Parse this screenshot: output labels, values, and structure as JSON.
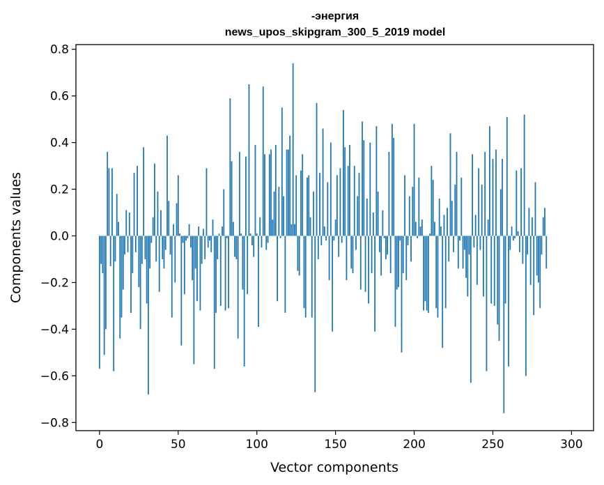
{
  "chart_data": {
    "type": "bar",
    "title_line1": "-энергия",
    "title_line2": "news_upos_skipgram_300_5_2019 model",
    "xlabel": "Vector components",
    "ylabel": "Components values",
    "xlim": [
      -15,
      314
    ],
    "ylim": [
      -0.835,
      0.82
    ],
    "xticks": [
      0,
      50,
      100,
      150,
      200,
      250,
      300
    ],
    "xtick_labels": [
      "0",
      "50",
      "100",
      "150",
      "200",
      "250",
      "300"
    ],
    "yticks": [
      -0.8,
      -0.6,
      -0.4,
      -0.2,
      0.0,
      0.2,
      0.4,
      0.6,
      0.8
    ],
    "ytick_labels": [
      "−0.8",
      "−0.6",
      "−0.4",
      "−0.2",
      "0.0",
      "0.2",
      "0.4",
      "0.6",
      "0.8"
    ],
    "bar_color": "#1f77b4",
    "values": [
      -0.57,
      -0.12,
      -0.16,
      -0.51,
      -0.4,
      0.36,
      0.29,
      -0.13,
      0.29,
      -0.58,
      -0.11,
      0.18,
      0.06,
      -0.44,
      -0.35,
      -0.23,
      -0.08,
      0.11,
      -0.07,
      0.1,
      -0.33,
      -0.16,
      0.27,
      -0.07,
      0.3,
      -0.22,
      -0.4,
      -0.12,
      0.38,
      -0.1,
      -0.29,
      -0.68,
      -0.14,
      -0.03,
      0.08,
      0.31,
      -0.11,
      0.19,
      -0.24,
      0.11,
      -0.1,
      -0.14,
      -0.06,
      0.43,
      0.15,
      -0.08,
      -0.35,
      0.05,
      -0.2,
      0.14,
      0.26,
      0.01,
      -0.47,
      -0.03,
      -0.25,
      -0.02,
      -0.01,
      0.05,
      -0.05,
      -0.19,
      -0.55,
      -0.14,
      -0.28,
      0.04,
      -0.32,
      -0.12,
      0.03,
      -0.1,
      0.29,
      -0.05,
      -0.02,
      -0.07,
      0.07,
      -0.57,
      -0.33,
      -0.1,
      0.01,
      -0.3,
      0.04,
      0.2,
      -0.32,
      -0.01,
      -0.31,
      0.59,
      0.32,
      0.06,
      -0.09,
      -0.1,
      -0.44,
      0.36,
      0.01,
      -0.23,
      -0.56,
      0.34,
      -0.25,
      0.65,
      0.01,
      -0.04,
      -0.09,
      0.39,
      0.01,
      -0.39,
      0.08,
      -0.05,
      0.64,
      0.35,
      -0.06,
      -0.03,
      0.35,
      0.37,
      0.07,
      0.19,
      0.39,
      -0.28,
      0.21,
      -0.01,
      0.55,
      0.17,
      -0.33,
      0.37,
      0.37,
      0.43,
      0.05,
      0.74,
      0.05,
      0.26,
      -0.15,
      -0.17,
      0.28,
      0.35,
      -0.31,
      -0.35,
      0.25,
      0.26,
      0.08,
      -0.35,
      0.19,
      -0.67,
      0.57,
      -0.1,
      0.27,
      -0.04,
      0.46,
      0.04,
      -0.02,
      0.23,
      -0.19,
      0.4,
      -0.41,
      -0.02,
      0.07,
      0.26,
      -0.09,
      0.29,
      -0.03,
      0.54,
      0.38,
      -0.19,
      0.3,
      0.39,
      -0.14,
      -0.16,
      0.3,
      -0.06,
      0.17,
      0.27,
      -0.23,
      0.49,
      0.41,
      -0.24,
      0.16,
      -0.29,
      0.4,
      -0.16,
      0.1,
      -0.41,
      0.47,
      0.19,
      -0.07,
      -0.17,
      0.11,
      -0.01,
      -0.1,
      -0.08,
      0.36,
      -0.16,
      0.48,
      0.42,
      -0.39,
      -0.23,
      -0.22,
      -0.02,
      -0.5,
      -0.16,
      0.26,
      -0.19,
      -0.04,
      0.17,
      -0.11,
      0.21,
      0.48,
      0.06,
      -0.01,
      0.25,
      0.04,
      0.07,
      -0.32,
      -0.28,
      -0.32,
      -0.33,
      0.01,
      0.3,
      0.24,
      0.06,
      -0.31,
      -0.35,
      0.16,
      0.04,
      -0.48,
      0.09,
      -0.31,
      0.12,
      -0.11,
      0.44,
      0.15,
      -0.07,
      0.22,
      0.36,
      -0.14,
      -0.02,
      0.25,
      -0.14,
      -0.06,
      -0.18,
      -0.26,
      -0.08,
      -0.63,
      0.35,
      -0.05,
      0.09,
      -0.21,
      0.29,
      -0.06,
      0.22,
      -0.26,
      0.36,
      -0.58,
      0.07,
      0.47,
      -0.29,
      0.33,
      -0.3,
      0.37,
      -0.38,
      -0.45,
      0.2,
      0.33,
      -0.76,
      -0.29,
      0.51,
      -0.56,
      -0.06,
      0.04,
      -0.02,
      -0.01,
      0.28,
      0.02,
      -0.07,
      0.29,
      -0.12,
      0.52,
      -0.6,
      -0.08,
      0.12,
      -0.21,
      0.08,
      -0.34,
      0.23,
      -0.17,
      -0.2,
      -0.31,
      -0.08,
      0.08,
      0.12,
      -0.14
    ]
  }
}
